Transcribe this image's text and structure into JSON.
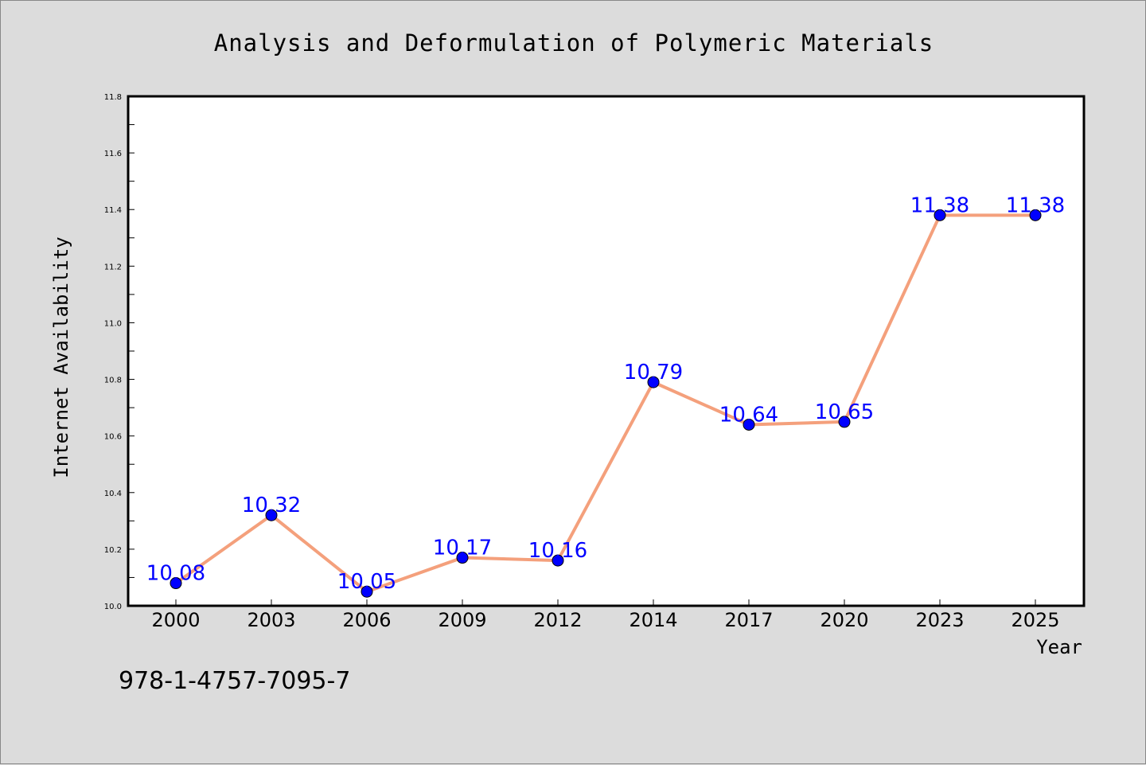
{
  "chart_data": {
    "type": "line",
    "title": "Analysis and Deformulation of Polymeric Materials",
    "xlabel": "Year",
    "ylabel": "Internet Availability",
    "categories": [
      "2000",
      "2003",
      "2006",
      "2009",
      "2012",
      "2014",
      "2017",
      "2020",
      "2023",
      "2025"
    ],
    "series": [
      {
        "values": [
          10.08,
          10.32,
          10.05,
          10.17,
          10.16,
          10.79,
          10.64,
          10.65,
          11.38,
          11.38
        ],
        "data_labels": [
          "10.08",
          "10.32",
          "10.05",
          "10.17",
          "10.16",
          "10.79",
          "10.64",
          "10.65",
          "11.38",
          "11.38"
        ],
        "line_color": "#f4a07c",
        "marker_color": "#0000ff"
      }
    ],
    "ylim": [
      10.0,
      11.8
    ],
    "yticks": [
      "10.0",
      "10.2",
      "10.4",
      "10.6",
      "10.8",
      "11.0",
      "11.2",
      "11.4",
      "11.6",
      "11.8"
    ],
    "grid": false,
    "legend": "none"
  },
  "footer": {
    "isbn": "978-1-4757-7095-7"
  },
  "colors": {
    "background": "#dcdcdc",
    "plot_background": "#ffffff",
    "line": "#f4a07c",
    "marker": "#0000ff",
    "data_label": "#0000ff"
  }
}
